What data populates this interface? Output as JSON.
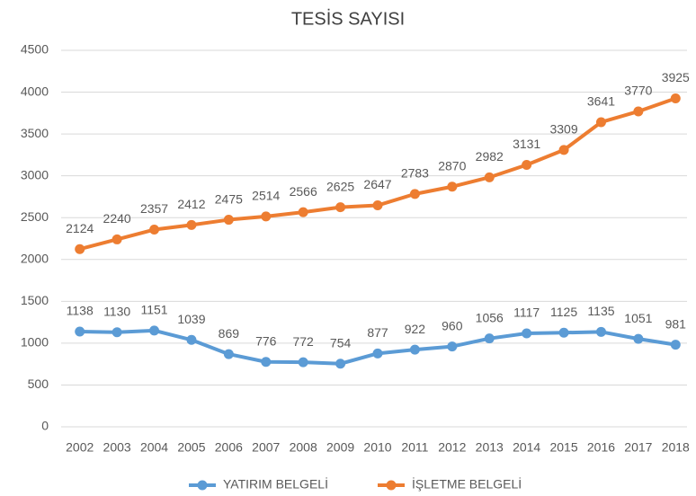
{
  "chart_data": {
    "type": "line",
    "title": "TESİS SAYISI",
    "categories": [
      "2002",
      "2003",
      "2004",
      "2005",
      "2006",
      "2007",
      "2008",
      "2009",
      "2010",
      "2011",
      "2012",
      "2013",
      "2014",
      "2015",
      "2016",
      "2017",
      "2018"
    ],
    "series": [
      {
        "name": "YATIRIM BELGELİ",
        "color": "#5b9bd5",
        "values": [
          1138,
          1130,
          1151,
          1039,
          869,
          776,
          772,
          754,
          877,
          922,
          960,
          1056,
          1117,
          1125,
          1135,
          1051,
          981
        ]
      },
      {
        "name": "İŞLETME BELGELİ",
        "color": "#ed7d31",
        "values": [
          2124,
          2240,
          2357,
          2412,
          2475,
          2514,
          2566,
          2625,
          2647,
          2783,
          2870,
          2982,
          3131,
          3309,
          3641,
          3770,
          3925
        ]
      }
    ],
    "ylim": [
      0,
      4500
    ],
    "yticks": [
      0,
      500,
      1000,
      1500,
      2000,
      2500,
      3000,
      3500,
      4000,
      4500
    ],
    "grid": true,
    "legend": "bottom"
  }
}
